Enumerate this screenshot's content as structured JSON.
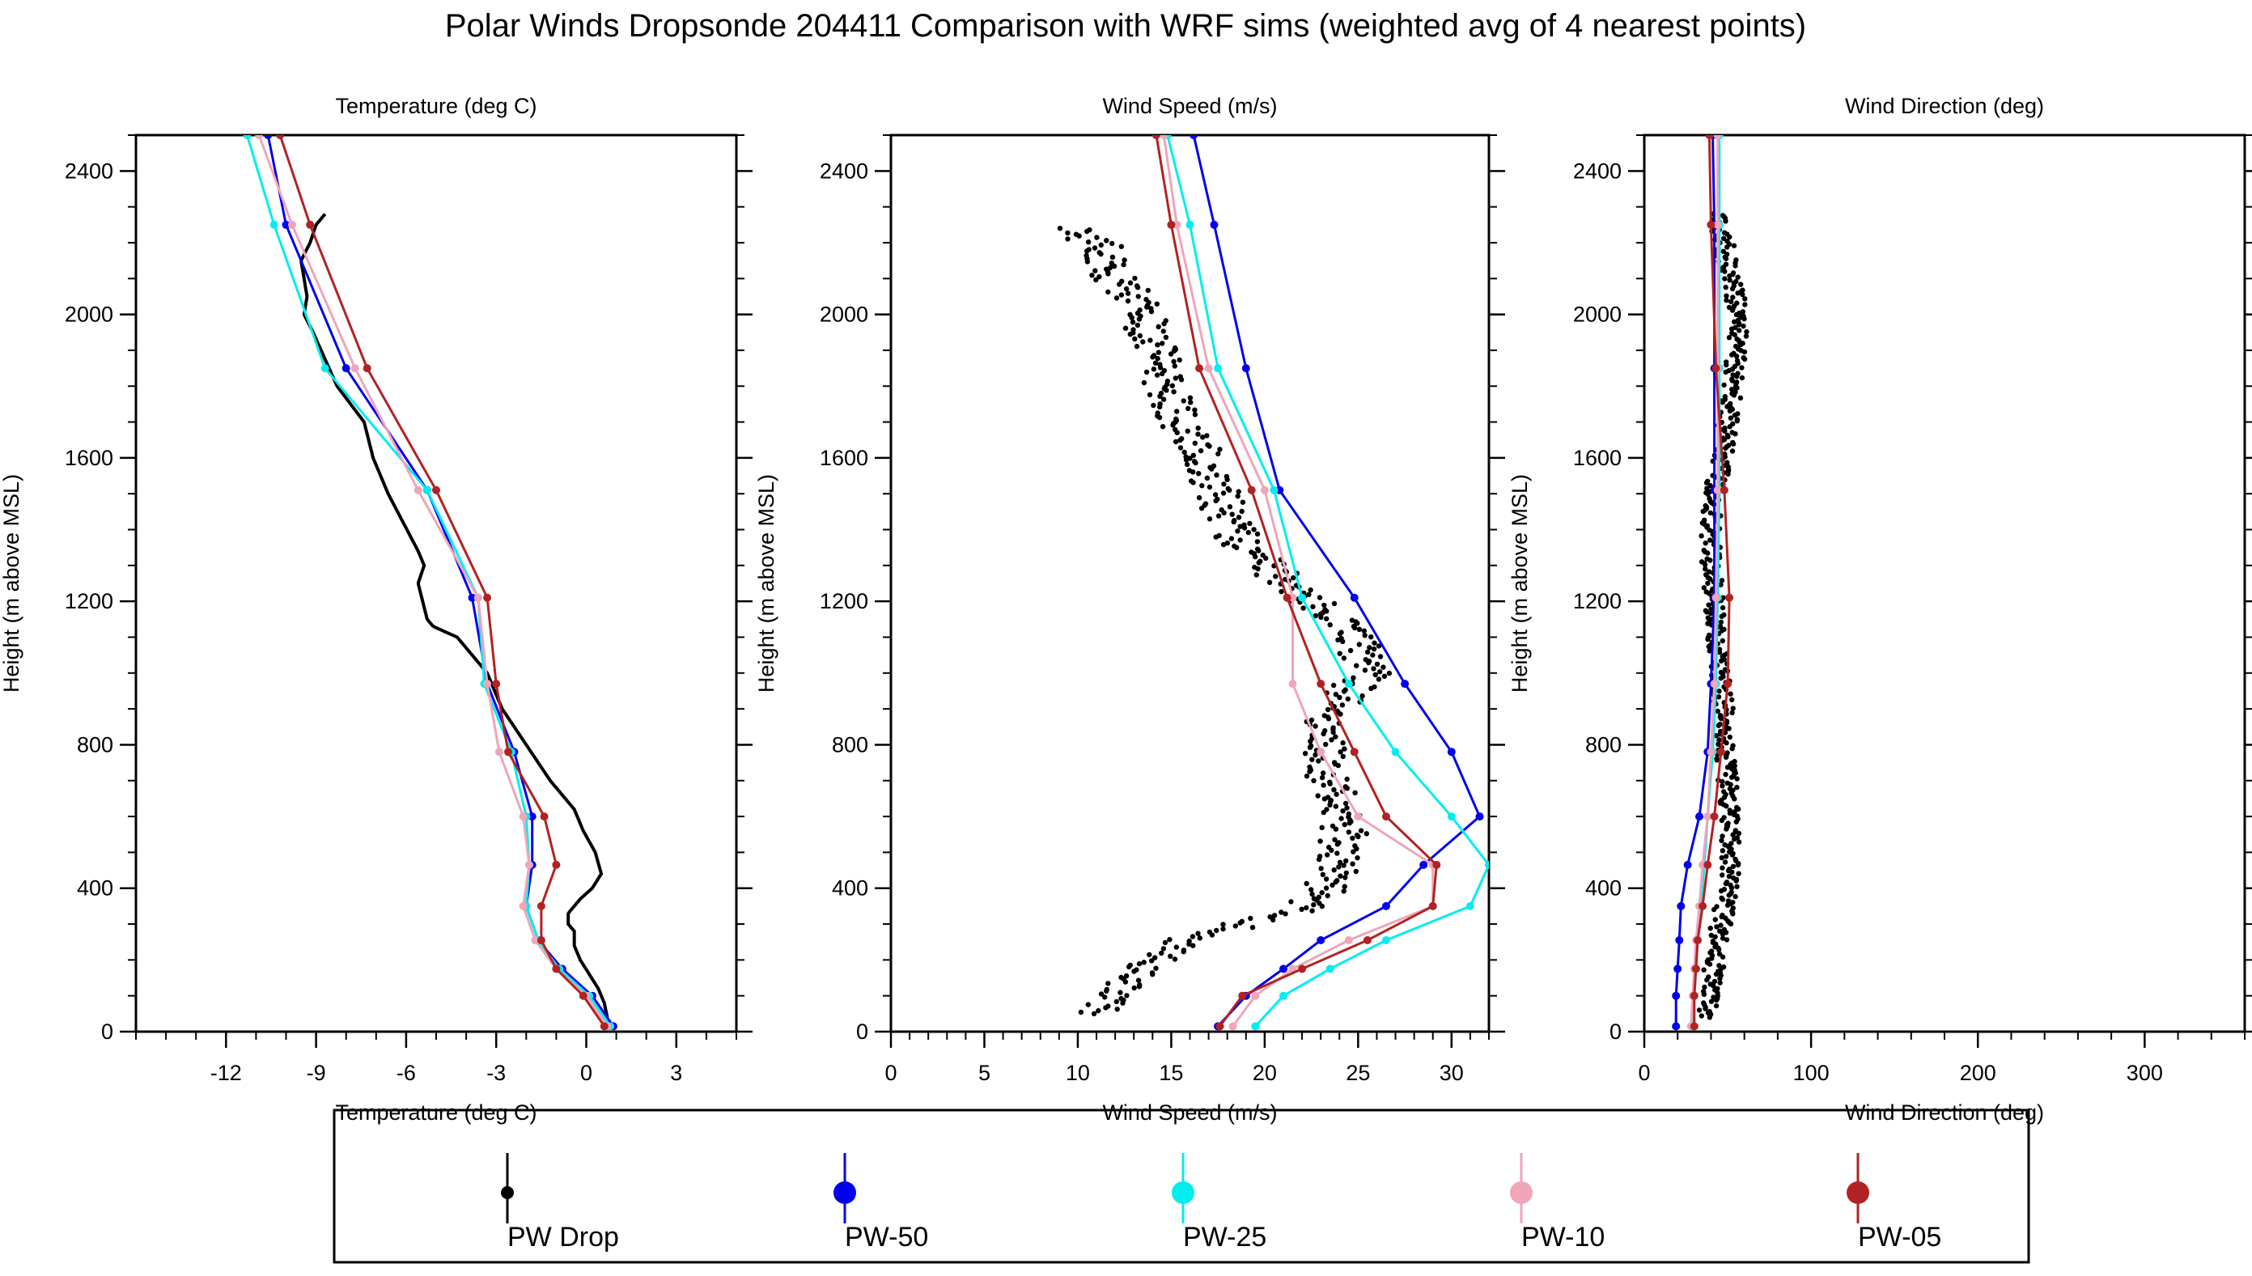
{
  "figure": {
    "title": "Polar Winds Dropsonde 204411 Comparison with WRF sims (weighted avg of 4 nearest points)"
  },
  "legend": {
    "entries": [
      {
        "label": "PW Drop",
        "color": "#000000"
      },
      {
        "label": "PW-50",
        "color": "#0000ee"
      },
      {
        "label": "PW-25",
        "color": "#00eeee"
      },
      {
        "label": "PW-10",
        "color": "#f0a5b8"
      },
      {
        "label": "PW-05",
        "color": "#b22222"
      }
    ]
  },
  "chart_data": [
    {
      "type": "line",
      "title": "Temperature (deg C)",
      "xlabel": "Temperature (deg C)",
      "ylabel": "Height (m above MSL)",
      "xlim": [
        -15,
        5
      ],
      "ylim": [
        0,
        2500
      ],
      "xticks": [
        "-12",
        "-9",
        "-6",
        "-3",
        "0",
        "3"
      ],
      "xtick_values": [
        -12,
        -9,
        -6,
        -3,
        0,
        3
      ],
      "yticks": [
        "0",
        "400",
        "800",
        "1200",
        "1600",
        "2000",
        "2400"
      ],
      "ytick_values": [
        0,
        400,
        800,
        1200,
        1600,
        2000,
        2400
      ],
      "observations": {
        "name": "PW Drop",
        "x": [
          0.7,
          0.6,
          0.4,
          0.1,
          -0.2,
          -0.4,
          -0.4,
          -0.6,
          -0.6,
          -0.2,
          0.2,
          0.5,
          0.3,
          -0.1,
          -0.4,
          -1.2,
          -2.0,
          -2.8,
          -3.3,
          -4.3,
          -5.1,
          -5.3,
          -5.6,
          -5.4,
          -5.6,
          -6.6,
          -7.1,
          -7.4,
          -8.3,
          -9.1,
          -9.4,
          -9.3,
          -9.5,
          -9.2,
          -9.0,
          -8.7
        ],
        "y": [
          40,
          80,
          120,
          160,
          200,
          240,
          280,
          300,
          330,
          370,
          400,
          440,
          500,
          560,
          620,
          700,
          800,
          900,
          1000,
          1100,
          1130,
          1150,
          1250,
          1300,
          1340,
          1500,
          1600,
          1700,
          1800,
          1950,
          2000,
          2050,
          2150,
          2200,
          2250,
          2280
        ]
      },
      "series": [
        {
          "name": "PW-50",
          "x": [
            0.9,
            0.2,
            -0.8,
            -1.6,
            -2.0,
            -1.8,
            -1.8,
            -2.4,
            -3.3,
            -3.8,
            -5.3,
            -8.0,
            -10.0,
            -10.6
          ],
          "y": [
            15,
            100,
            175,
            255,
            350,
            465,
            600,
            780,
            970,
            1210,
            1510,
            1850,
            2250,
            2500
          ]
        },
        {
          "name": "PW-25",
          "x": [
            0.8,
            0.1,
            -0.9,
            -1.6,
            -2.0,
            -1.9,
            -2.0,
            -2.5,
            -3.4,
            -3.6,
            -5.3,
            -8.7,
            -10.4,
            -11.3
          ],
          "y": [
            15,
            100,
            175,
            255,
            350,
            465,
            600,
            780,
            970,
            1210,
            1510,
            1850,
            2250,
            2500
          ]
        },
        {
          "name": "PW-10",
          "x": [
            0.7,
            0.0,
            -1.0,
            -1.7,
            -2.1,
            -1.9,
            -2.1,
            -2.9,
            -3.3,
            -3.6,
            -5.6,
            -7.7,
            -9.8,
            -10.9
          ],
          "y": [
            15,
            100,
            175,
            255,
            350,
            465,
            600,
            780,
            970,
            1210,
            1510,
            1850,
            2250,
            2500
          ]
        },
        {
          "name": "PW-05",
          "x": [
            0.6,
            -0.1,
            -1.0,
            -1.5,
            -1.5,
            -1.0,
            -1.4,
            -2.6,
            -3.0,
            -3.3,
            -5.0,
            -7.3,
            -9.2,
            -10.2
          ],
          "y": [
            15,
            100,
            175,
            255,
            350,
            465,
            600,
            780,
            970,
            1210,
            1510,
            1850,
            2250,
            2500
          ]
        }
      ]
    },
    {
      "type": "line",
      "title": "Wind Speed (m/s)",
      "xlabel": "Wind Speed (m/s)",
      "ylabel": "Height (m above MSL)",
      "xlim": [
        0,
        32
      ],
      "ylim": [
        0,
        2500
      ],
      "xticks": [
        "0",
        "5",
        "10",
        "15",
        "20",
        "25",
        "30"
      ],
      "xtick_values": [
        0,
        5,
        10,
        15,
        20,
        25,
        30
      ],
      "yticks": [
        "0",
        "400",
        "800",
        "1200",
        "1600",
        "2000",
        "2400"
      ],
      "ytick_values": [
        0,
        400,
        800,
        1200,
        1600,
        2000,
        2400
      ],
      "observations": {
        "name": "PW Drop",
        "x": [
          10.5,
          11.5,
          12.3,
          13.0,
          14.0,
          15.0,
          16.0,
          17.5,
          19.0,
          20.8,
          22.0,
          23.0,
          23.5,
          23.8,
          24.0,
          24.3,
          24.0,
          23.5,
          23.2,
          23.0,
          23.5,
          24.5,
          25.5,
          25.0,
          24.0,
          22.0,
          20.5,
          19.0,
          18.0,
          17.5,
          17.0,
          16.5,
          15.5,
          14.8,
          14.5,
          14.0,
          13.5,
          13.0,
          12.0,
          11.5,
          9.5
        ],
        "y": [
          50,
          80,
          120,
          160,
          200,
          230,
          260,
          280,
          300,
          320,
          340,
          380,
          420,
          460,
          500,
          560,
          620,
          700,
          760,
          820,
          880,
          950,
          1000,
          1080,
          1150,
          1220,
          1280,
          1350,
          1420,
          1500,
          1560,
          1640,
          1700,
          1780,
          1850,
          1920,
          2000,
          2050,
          2100,
          2180,
          2240
        ]
      },
      "series": [
        {
          "name": "PW-50",
          "x": [
            17.5,
            19.0,
            21.0,
            23.0,
            26.5,
            28.5,
            31.5,
            30.0,
            27.5,
            24.8,
            20.8,
            19.0,
            17.3,
            16.2
          ],
          "y": [
            15,
            100,
            175,
            255,
            350,
            465,
            600,
            780,
            970,
            1210,
            1510,
            1850,
            2250,
            2500
          ]
        },
        {
          "name": "PW-25",
          "x": [
            19.5,
            21.0,
            23.5,
            26.5,
            31.0,
            32.0,
            30.0,
            27.0,
            24.5,
            22.0,
            20.5,
            17.5,
            16.0,
            14.8
          ],
          "y": [
            15,
            100,
            175,
            255,
            350,
            465,
            600,
            780,
            970,
            1210,
            1510,
            1850,
            2250,
            2500
          ]
        },
        {
          "name": "PW-10",
          "x": [
            18.3,
            19.5,
            21.5,
            24.5,
            29.0,
            29.0,
            25.0,
            23.0,
            21.5,
            21.5,
            20.0,
            17.0,
            15.3,
            14.6
          ],
          "y": [
            15,
            100,
            175,
            255,
            350,
            465,
            600,
            780,
            970,
            1210,
            1510,
            1850,
            2250,
            2500
          ]
        },
        {
          "name": "PW-05",
          "x": [
            17.6,
            18.8,
            22.0,
            25.5,
            29.0,
            29.2,
            26.5,
            24.8,
            23.0,
            21.2,
            19.3,
            16.5,
            15.0,
            14.2
          ],
          "y": [
            15,
            100,
            175,
            255,
            350,
            465,
            600,
            780,
            970,
            1210,
            1510,
            1850,
            2250,
            2500
          ]
        }
      ]
    },
    {
      "type": "line",
      "title": "Wind Direction (deg)",
      "xlabel": "Wind Direction (deg)",
      "ylabel": "Height (m above MSL)",
      "xlim": [
        0,
        360
      ],
      "ylim": [
        0,
        2500
      ],
      "xticks": [
        "0",
        "100",
        "200",
        "300"
      ],
      "xtick_values": [
        0,
        100,
        200,
        300
      ],
      "yticks": [
        "0",
        "400",
        "800",
        "1200",
        "1600",
        "2000",
        "2400"
      ],
      "ytick_values": [
        0,
        400,
        800,
        1200,
        1600,
        2000,
        2400
      ],
      "observations": {
        "name": "PW Drop",
        "x": [
          38,
          40,
          42,
          46,
          50,
          52,
          51,
          50,
          49,
          48,
          46,
          44,
          42,
          40,
          40,
          41,
          42,
          44,
          47,
          50,
          53,
          56,
          56,
          55,
          52,
          48,
          42
        ],
        "y": [
          40,
          100,
          200,
          300,
          400,
          500,
          600,
          700,
          800,
          900,
          1000,
          1100,
          1200,
          1300,
          1400,
          1450,
          1500,
          1550,
          1600,
          1700,
          1800,
          1900,
          2000,
          2050,
          2100,
          2200,
          2280
        ]
      },
      "series": [
        {
          "name": "PW-50",
          "x": [
            19,
            19,
            20,
            21,
            22,
            26,
            33,
            38,
            40,
            42,
            42,
            42,
            42,
            41
          ],
          "y": [
            15,
            100,
            175,
            255,
            350,
            465,
            600,
            780,
            970,
            1210,
            1510,
            1850,
            2250,
            2500
          ]
        },
        {
          "name": "PW-25",
          "x": [
            29,
            30,
            31,
            32,
            34,
            36,
            38,
            41,
            43,
            44,
            45,
            45,
            45,
            45
          ],
          "y": [
            15,
            100,
            175,
            255,
            350,
            465,
            600,
            780,
            970,
            1210,
            1510,
            1850,
            2250,
            2500
          ]
        },
        {
          "name": "PW-10",
          "x": [
            28,
            29,
            30,
            31,
            33,
            35,
            38,
            40,
            42,
            43,
            44,
            44,
            44,
            44
          ],
          "y": [
            15,
            100,
            175,
            255,
            350,
            465,
            600,
            780,
            970,
            1210,
            1510,
            1850,
            2250,
            2500
          ]
        },
        {
          "name": "PW-05",
          "x": [
            30,
            30,
            31,
            32,
            35,
            38,
            42,
            46,
            50,
            51,
            48,
            43,
            40,
            39
          ],
          "y": [
            15,
            100,
            175,
            255,
            350,
            465,
            600,
            780,
            970,
            1210,
            1510,
            1850,
            2250,
            2500
          ]
        }
      ]
    }
  ]
}
